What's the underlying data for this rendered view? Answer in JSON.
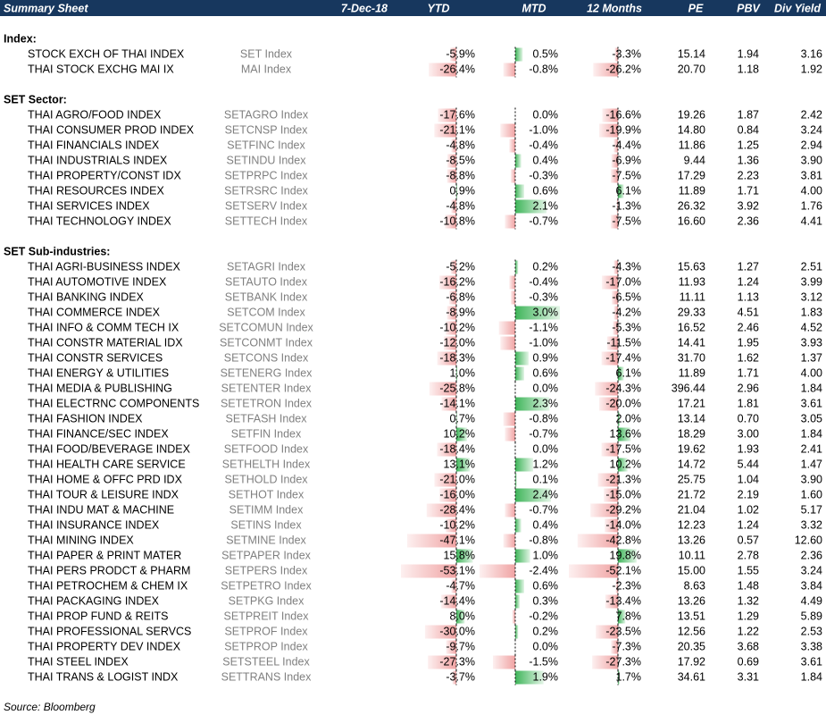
{
  "header": {
    "title": "Summary Sheet",
    "date": "7-Dec-18",
    "columns": [
      "YTD",
      "MTD",
      "12 Months",
      "PE",
      "PBV",
      "Div Yield"
    ]
  },
  "sections": [
    {
      "title": "Index:",
      "rows": [
        {
          "name": "STOCK EXCH OF THAI INDEX",
          "ticker": "SET Index",
          "ytd": {
            "value": -5.9,
            "label": "-5.9%"
          },
          "mtd": {
            "value": 0.5,
            "label": "0.5%"
          },
          "m12": {
            "value": -3.3,
            "label": "-3.3%"
          },
          "pe": "15.14",
          "pbv": "1.94",
          "div_yield": "3.16"
        },
        {
          "name": "THAI STOCK EXCHG MAI IX",
          "ticker": "MAI Index",
          "ytd": {
            "value": -26.4,
            "label": "-26.4%"
          },
          "mtd": {
            "value": -0.8,
            "label": "-0.8%"
          },
          "m12": {
            "value": -26.2,
            "label": "-26.2%"
          },
          "pe": "20.70",
          "pbv": "1.18",
          "div_yield": "1.92"
        }
      ]
    },
    {
      "title": "SET Sector:",
      "rows": [
        {
          "name": "THAI AGRO/FOOD INDEX",
          "ticker": "SETAGRO Index",
          "ytd": {
            "value": -17.6,
            "label": "-17.6%"
          },
          "mtd": {
            "value": 0.0,
            "label": "0.0%"
          },
          "m12": {
            "value": -16.6,
            "label": "-16.6%"
          },
          "pe": "19.26",
          "pbv": "1.87",
          "div_yield": "2.42"
        },
        {
          "name": "THAI CONSUMER PROD INDEX",
          "ticker": "SETCNSP Index",
          "ytd": {
            "value": -21.1,
            "label": "-21.1%"
          },
          "mtd": {
            "value": -1.0,
            "label": "-1.0%"
          },
          "m12": {
            "value": -19.9,
            "label": "-19.9%"
          },
          "pe": "14.80",
          "pbv": "0.84",
          "div_yield": "3.24"
        },
        {
          "name": "THAI FINANCIALS INDEX",
          "ticker": "SETFINC Index",
          "ytd": {
            "value": -4.8,
            "label": "-4.8%"
          },
          "mtd": {
            "value": -0.4,
            "label": "-0.4%"
          },
          "m12": {
            "value": -4.4,
            "label": "-4.4%"
          },
          "pe": "11.86",
          "pbv": "1.25",
          "div_yield": "2.94"
        },
        {
          "name": "THAI INDUSTRIALS INDEX",
          "ticker": "SETINDU Index",
          "ytd": {
            "value": -8.5,
            "label": "-8.5%"
          },
          "mtd": {
            "value": 0.4,
            "label": "0.4%"
          },
          "m12": {
            "value": -6.9,
            "label": "-6.9%"
          },
          "pe": "9.44",
          "pbv": "1.36",
          "div_yield": "3.90"
        },
        {
          "name": "THAI PROPERTY/CONST IDX",
          "ticker": "SETPRPC Index",
          "ytd": {
            "value": -8.8,
            "label": "-8.8%"
          },
          "mtd": {
            "value": -0.3,
            "label": "-0.3%"
          },
          "m12": {
            "value": -7.5,
            "label": "-7.5%"
          },
          "pe": "17.29",
          "pbv": "2.23",
          "div_yield": "3.81"
        },
        {
          "name": "THAI RESOURCES INDEX",
          "ticker": "SETRSRC Index",
          "ytd": {
            "value": 0.9,
            "label": "0.9%"
          },
          "mtd": {
            "value": 0.6,
            "label": "0.6%"
          },
          "m12": {
            "value": 6.1,
            "label": "6.1%"
          },
          "pe": "11.89",
          "pbv": "1.71",
          "div_yield": "4.00"
        },
        {
          "name": "THAI SERVICES INDEX",
          "ticker": "SETSERV Index",
          "ytd": {
            "value": -4.8,
            "label": "-4.8%"
          },
          "mtd": {
            "value": 2.1,
            "label": "2.1%"
          },
          "m12": {
            "value": -1.3,
            "label": "-1.3%"
          },
          "pe": "26.32",
          "pbv": "3.92",
          "div_yield": "1.76"
        },
        {
          "name": "THAI TECHNOLOGY INDEX",
          "ticker": "SETTECH Index",
          "ytd": {
            "value": -10.8,
            "label": "-10.8%"
          },
          "mtd": {
            "value": -0.7,
            "label": "-0.7%"
          },
          "m12": {
            "value": -7.5,
            "label": "-7.5%"
          },
          "pe": "16.60",
          "pbv": "2.36",
          "div_yield": "4.41"
        }
      ]
    },
    {
      "title": "SET Sub-industries:",
      "rows": [
        {
          "name": "THAI AGRI-BUSINESS INDEX",
          "ticker": "SETAGRI Index",
          "ytd": {
            "value": -5.2,
            "label": "-5.2%"
          },
          "mtd": {
            "value": 0.2,
            "label": "0.2%"
          },
          "m12": {
            "value": -4.3,
            "label": "-4.3%"
          },
          "pe": "15.63",
          "pbv": "1.27",
          "div_yield": "2.51"
        },
        {
          "name": "THAI AUTOMOTIVE INDEX",
          "ticker": "SETAUTO Index",
          "ytd": {
            "value": -16.2,
            "label": "-16.2%"
          },
          "mtd": {
            "value": -0.4,
            "label": "-0.4%"
          },
          "m12": {
            "value": -17.0,
            "label": "-17.0%"
          },
          "pe": "11.93",
          "pbv": "1.24",
          "div_yield": "3.99"
        },
        {
          "name": "THAI BANKING INDEX",
          "ticker": "SETBANK Index",
          "ytd": {
            "value": -6.8,
            "label": "-6.8%"
          },
          "mtd": {
            "value": -0.3,
            "label": "-0.3%"
          },
          "m12": {
            "value": -6.5,
            "label": "-6.5%"
          },
          "pe": "11.11",
          "pbv": "1.13",
          "div_yield": "3.12"
        },
        {
          "name": "THAI COMMERCE INDEX",
          "ticker": "SETCOM Index",
          "ytd": {
            "value": -8.9,
            "label": "-8.9%"
          },
          "mtd": {
            "value": 3.0,
            "label": "3.0%"
          },
          "m12": {
            "value": -4.2,
            "label": "-4.2%"
          },
          "pe": "29.33",
          "pbv": "4.51",
          "div_yield": "1.83"
        },
        {
          "name": "THAI INFO & COMM TECH IX",
          "ticker": "SETCOMUN Index",
          "ytd": {
            "value": -10.2,
            "label": "-10.2%"
          },
          "mtd": {
            "value": -1.1,
            "label": "-1.1%"
          },
          "m12": {
            "value": -5.3,
            "label": "-5.3%"
          },
          "pe": "16.52",
          "pbv": "2.46",
          "div_yield": "4.52"
        },
        {
          "name": "THAI CONSTR MATERIAL IDX",
          "ticker": "SETCONMT Index",
          "ytd": {
            "value": -12.0,
            "label": "-12.0%"
          },
          "mtd": {
            "value": -1.0,
            "label": "-1.0%"
          },
          "m12": {
            "value": -11.5,
            "label": "-11.5%"
          },
          "pe": "14.41",
          "pbv": "1.95",
          "div_yield": "3.93"
        },
        {
          "name": "THAI CONSTR SERVICES",
          "ticker": "SETCONS Index",
          "ytd": {
            "value": -18.3,
            "label": "-18.3%"
          },
          "mtd": {
            "value": 0.9,
            "label": "0.9%"
          },
          "m12": {
            "value": -17.4,
            "label": "-17.4%"
          },
          "pe": "31.70",
          "pbv": "1.62",
          "div_yield": "1.37"
        },
        {
          "name": "THAI ENERGY & UTILITIES",
          "ticker": "SETENERG Index",
          "ytd": {
            "value": 1.0,
            "label": "1.0%"
          },
          "mtd": {
            "value": 0.6,
            "label": "0.6%"
          },
          "m12": {
            "value": 6.1,
            "label": "6.1%"
          },
          "pe": "11.89",
          "pbv": "1.71",
          "div_yield": "4.00"
        },
        {
          "name": "THAI MEDIA & PUBLISHING",
          "ticker": "SETENTER Index",
          "ytd": {
            "value": -25.8,
            "label": "-25.8%"
          },
          "mtd": {
            "value": 0.0,
            "label": "0.0%"
          },
          "m12": {
            "value": -24.3,
            "label": "-24.3%"
          },
          "pe": "396.44",
          "pbv": "2.96",
          "div_yield": "1.84"
        },
        {
          "name": "THAI ELECTRNC COMPONENTS",
          "ticker": "SETETRON Index",
          "ytd": {
            "value": -14.1,
            "label": "-14.1%"
          },
          "mtd": {
            "value": 2.3,
            "label": "2.3%"
          },
          "m12": {
            "value": -20.0,
            "label": "-20.0%"
          },
          "pe": "17.21",
          "pbv": "1.81",
          "div_yield": "3.61"
        },
        {
          "name": "THAI FASHION INDEX",
          "ticker": "SETFASH Index",
          "ytd": {
            "value": 0.7,
            "label": "0.7%"
          },
          "mtd": {
            "value": -0.8,
            "label": "-0.8%"
          },
          "m12": {
            "value": 2.0,
            "label": "2.0%"
          },
          "pe": "13.14",
          "pbv": "0.70",
          "div_yield": "3.05"
        },
        {
          "name": "THAI FINANCE/SEC INDEX",
          "ticker": "SETFIN Index",
          "ytd": {
            "value": 10.2,
            "label": "10.2%"
          },
          "mtd": {
            "value": -0.7,
            "label": "-0.7%"
          },
          "m12": {
            "value": 13.6,
            "label": "13.6%"
          },
          "pe": "18.29",
          "pbv": "3.00",
          "div_yield": "1.84"
        },
        {
          "name": "THAI FOOD/BEVERAGE INDEX",
          "ticker": "SETFOOD Index",
          "ytd": {
            "value": -18.4,
            "label": "-18.4%"
          },
          "mtd": {
            "value": 0.0,
            "label": "0.0%"
          },
          "m12": {
            "value": -17.5,
            "label": "-17.5%"
          },
          "pe": "19.62",
          "pbv": "1.93",
          "div_yield": "2.41"
        },
        {
          "name": "THAI HEALTH CARE SERVICE",
          "ticker": "SETHELTH Index",
          "ytd": {
            "value": 13.1,
            "label": "13.1%"
          },
          "mtd": {
            "value": 1.2,
            "label": "1.2%"
          },
          "m12": {
            "value": 10.2,
            "label": "10.2%"
          },
          "pe": "14.72",
          "pbv": "5.44",
          "div_yield": "1.47"
        },
        {
          "name": "THAI HOME & OFFC PRD IDX",
          "ticker": "SETHOLD Index",
          "ytd": {
            "value": -21.0,
            "label": "-21.0%"
          },
          "mtd": {
            "value": 0.1,
            "label": "0.1%"
          },
          "m12": {
            "value": -21.3,
            "label": "-21.3%"
          },
          "pe": "25.75",
          "pbv": "1.04",
          "div_yield": "3.90"
        },
        {
          "name": "THAI TOUR & LEISURE INDX",
          "ticker": "SETHOT Index",
          "ytd": {
            "value": -16.0,
            "label": "-16.0%"
          },
          "mtd": {
            "value": 2.4,
            "label": "2.4%"
          },
          "m12": {
            "value": -15.0,
            "label": "-15.0%"
          },
          "pe": "21.72",
          "pbv": "2.19",
          "div_yield": "1.60"
        },
        {
          "name": "THAI INDU MAT & MACHINE",
          "ticker": "SETIMM Index",
          "ytd": {
            "value": -28.4,
            "label": "-28.4%"
          },
          "mtd": {
            "value": -0.7,
            "label": "-0.7%"
          },
          "m12": {
            "value": -29.2,
            "label": "-29.2%"
          },
          "pe": "21.04",
          "pbv": "1.02",
          "div_yield": "5.17"
        },
        {
          "name": "THAI INSURANCE INDEX",
          "ticker": "SETINS Index",
          "ytd": {
            "value": -10.2,
            "label": "-10.2%"
          },
          "mtd": {
            "value": 0.4,
            "label": "0.4%"
          },
          "m12": {
            "value": -14.0,
            "label": "-14.0%"
          },
          "pe": "12.23",
          "pbv": "1.24",
          "div_yield": "3.32"
        },
        {
          "name": "THAI MINING INDEX",
          "ticker": "SETMINE Index",
          "ytd": {
            "value": -47.1,
            "label": "-47.1%"
          },
          "mtd": {
            "value": -0.8,
            "label": "-0.8%"
          },
          "m12": {
            "value": -42.8,
            "label": "-42.8%"
          },
          "pe": "13.26",
          "pbv": "0.57",
          "div_yield": "12.60"
        },
        {
          "name": "THAI PAPER & PRINT MATER",
          "ticker": "SETPAPER Index",
          "ytd": {
            "value": 15.8,
            "label": "15.8%"
          },
          "mtd": {
            "value": 1.0,
            "label": "1.0%"
          },
          "m12": {
            "value": 19.8,
            "label": "19.8%"
          },
          "pe": "10.11",
          "pbv": "2.78",
          "div_yield": "2.36"
        },
        {
          "name": "THAI PERS PRODCT & PHARM",
          "ticker": "SETPERS Index",
          "ytd": {
            "value": -53.1,
            "label": "-53.1%"
          },
          "mtd": {
            "value": -2.4,
            "label": "-2.4%"
          },
          "m12": {
            "value": -52.1,
            "label": "-52.1%"
          },
          "pe": "15.00",
          "pbv": "1.55",
          "div_yield": "3.24"
        },
        {
          "name": "THAI PETROCHEM & CHEM IX",
          "ticker": "SETPETRO Index",
          "ytd": {
            "value": -4.7,
            "label": "-4.7%"
          },
          "mtd": {
            "value": 0.6,
            "label": "0.6%"
          },
          "m12": {
            "value": -2.3,
            "label": "-2.3%"
          },
          "pe": "8.63",
          "pbv": "1.48",
          "div_yield": "3.84"
        },
        {
          "name": "THAI PACKAGING INDEX",
          "ticker": "SETPKG Index",
          "ytd": {
            "value": -14.4,
            "label": "-14.4%"
          },
          "mtd": {
            "value": 0.3,
            "label": "0.3%"
          },
          "m12": {
            "value": -13.4,
            "label": "-13.4%"
          },
          "pe": "13.26",
          "pbv": "1.32",
          "div_yield": "4.49"
        },
        {
          "name": "THAI PROP FUND & REITS",
          "ticker": "SETPREIT Index",
          "ytd": {
            "value": 8.0,
            "label": "8.0%"
          },
          "mtd": {
            "value": -0.2,
            "label": "-0.2%"
          },
          "m12": {
            "value": 7.8,
            "label": "7.8%"
          },
          "pe": "13.51",
          "pbv": "1.29",
          "div_yield": "5.89"
        },
        {
          "name": "THAI PROFESSIONAL SERVCS",
          "ticker": "SETPROF Index",
          "ytd": {
            "value": -30.0,
            "label": "-30.0%"
          },
          "mtd": {
            "value": 0.2,
            "label": "0.2%"
          },
          "m12": {
            "value": -23.5,
            "label": "-23.5%"
          },
          "pe": "12.56",
          "pbv": "1.22",
          "div_yield": "2.53"
        },
        {
          "name": "THAI PROPERTY DEV INDEX",
          "ticker": "SETPROP Index",
          "ytd": {
            "value": -9.7,
            "label": "-9.7%"
          },
          "mtd": {
            "value": 0.0,
            "label": "0.0%"
          },
          "m12": {
            "value": -7.3,
            "label": "-7.3%"
          },
          "pe": "20.35",
          "pbv": "3.68",
          "div_yield": "3.38"
        },
        {
          "name": "THAI STEEL INDEX",
          "ticker": "SETSTEEL Index",
          "ytd": {
            "value": -27.3,
            "label": "-27.3%"
          },
          "mtd": {
            "value": -1.5,
            "label": "-1.5%"
          },
          "m12": {
            "value": -27.3,
            "label": "-27.3%"
          },
          "pe": "17.92",
          "pbv": "0.69",
          "div_yield": "3.61"
        },
        {
          "name": "THAI TRANS & LOGIST INDX",
          "ticker": "SETTRANS Index",
          "ytd": {
            "value": -3.7,
            "label": "-3.7%"
          },
          "mtd": {
            "value": 1.9,
            "label": "1.9%"
          },
          "m12": {
            "value": 1.7,
            "label": "1.7%"
          },
          "pe": "34.61",
          "pbv": "3.31",
          "div_yield": "1.84"
        }
      ]
    }
  ],
  "source": "Source: Bloomberg"
}
